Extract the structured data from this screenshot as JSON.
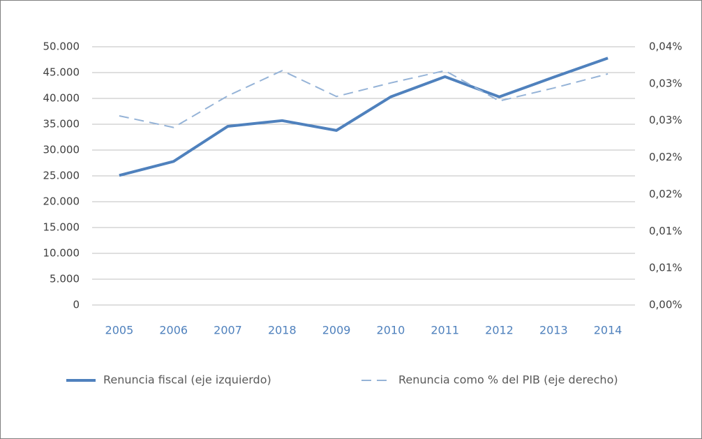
{
  "chart_data": {
    "type": "line",
    "categories": [
      "2005",
      "2006",
      "2007",
      "2018",
      "2009",
      "2010",
      "2011",
      "2012",
      "2013",
      "2014"
    ],
    "series": [
      {
        "name": "Renuncia fiscal (eje izquierdo)",
        "color": "#4f81bd",
        "values": [
          25100,
          27800,
          34600,
          35700,
          33800,
          40300,
          44200,
          40300,
          44100,
          47800
        ]
      },
      {
        "name": "Renuncia como % del PIB (eje derecho)",
        "color": "#95b3d7",
        "axis": "y2",
        "values": [
          0.0293,
          0.0275,
          0.0324,
          0.0363,
          0.0323,
          0.0344,
          0.0363,
          0.0316,
          0.0336,
          0.0358
        ]
      }
    ],
    "ylim": [
      0,
      50000
    ],
    "yticks": [
      0,
      {
        "value": 5000,
        "label": "5.000"
      },
      {
        "value": 10000,
        "label": "10.000"
      },
      {
        "value": 15000,
        "label": "15.000"
      },
      {
        "value": 20000,
        "label": "20.000"
      },
      {
        "value": 25000,
        "label": "25.000"
      },
      {
        "value": 30000,
        "label": "30.000"
      },
      {
        "value": 35000,
        "label": "35.000"
      },
      {
        "value": 40000,
        "label": "40.000"
      },
      {
        "value": 45000,
        "label": "45.000"
      },
      {
        "value": 50000,
        "label": "50.000"
      }
    ],
    "y2lim": [
      0,
      0.04
    ],
    "y2ticks": [
      {
        "value": 0,
        "label": "0,00%"
      },
      {
        "value": 0.005714,
        "label": "0,01%"
      },
      {
        "value": 0.011429,
        "label": "0,01%"
      },
      {
        "value": 0.017143,
        "label": "0,02%"
      },
      {
        "value": 0.022857,
        "label": "0,02%"
      },
      {
        "value": 0.028571,
        "label": "0,03%"
      },
      {
        "value": 0.034286,
        "label": "0,03%"
      },
      {
        "value": 0.04,
        "label": "0,04%"
      }
    ],
    "grid": true,
    "legend": "bottom"
  }
}
